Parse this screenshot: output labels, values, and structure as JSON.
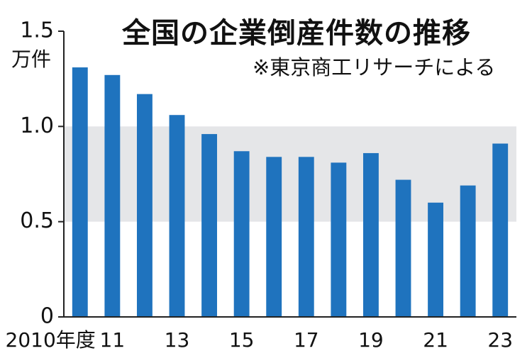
{
  "chart_data": {
    "type": "bar",
    "title": "全国の企業倒産件数の推移",
    "note": "※東京商工リサーチによる",
    "ylabel": "万件",
    "ylim": [
      0,
      1.5
    ],
    "yticks": [
      "1.5",
      "1.0",
      "0.5",
      "0"
    ],
    "ytick_values": [
      1.5,
      1.0,
      0.5,
      0
    ],
    "categories": [
      "2010",
      "2011",
      "2012",
      "2013",
      "2014",
      "2015",
      "2016",
      "2017",
      "2018",
      "2019",
      "2020",
      "2021",
      "2022",
      "2023"
    ],
    "xtick_labels": [
      "2010年度",
      "11",
      "",
      "13",
      "",
      "15",
      "",
      "17",
      "",
      "19",
      "",
      "21",
      "",
      "23"
    ],
    "values": [
      1.31,
      1.27,
      1.17,
      1.06,
      0.96,
      0.87,
      0.84,
      0.84,
      0.81,
      0.86,
      0.72,
      0.6,
      0.69,
      0.91
    ],
    "colors": {
      "bar": "#1f73be",
      "band": "#e5e6e8",
      "axis": "#222222"
    },
    "grid": "shaded bands"
  }
}
